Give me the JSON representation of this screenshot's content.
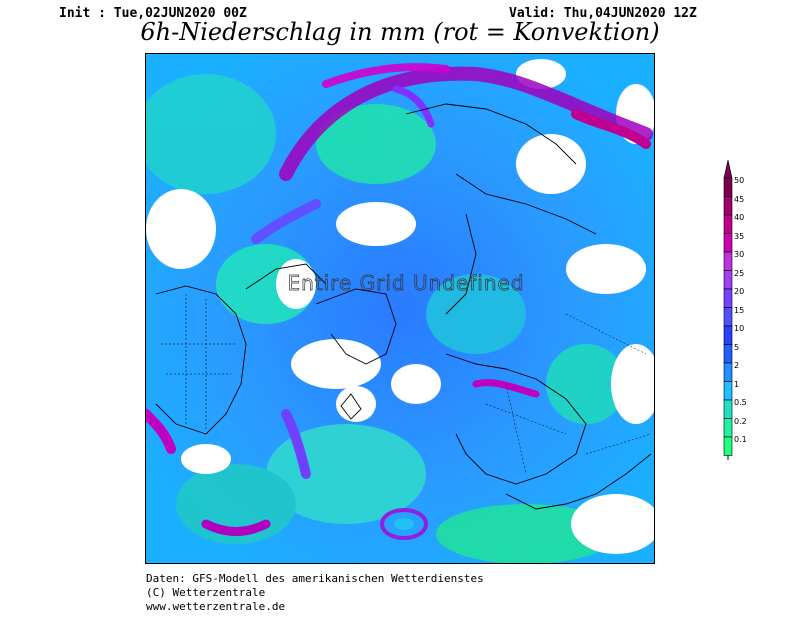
{
  "header": {
    "init": "Init : Tue,02JUN2020 00Z",
    "valid": "Valid: Thu,04JUN2020 12Z",
    "title": "6h-Niederschlag in mm (rot = Konvektion)"
  },
  "map": {
    "overlay_text": "Entire Grid Undefined"
  },
  "color_scale": {
    "labels": [
      "50",
      "45",
      "40",
      "35",
      "30",
      "25",
      "20",
      "15",
      "10",
      "5",
      "2",
      "1",
      "0.5",
      "0.2",
      "0.1"
    ],
    "colors": [
      "#7a0050",
      "#a0006a",
      "#c0008a",
      "#d000b0",
      "#c030e0",
      "#a040f0",
      "#7a40ff",
      "#5050ff",
      "#2a40ff",
      "#2060ff",
      "#2090ff",
      "#20c0ff",
      "#20e0c0",
      "#20f0a0",
      "#20ff80"
    ]
  },
  "footer": {
    "line1": "Daten: GFS-Modell des amerikanischen Wetterdienstes",
    "line2": "(C) Wetterzentrale",
    "line3": "www.wetterzentrale.de"
  }
}
